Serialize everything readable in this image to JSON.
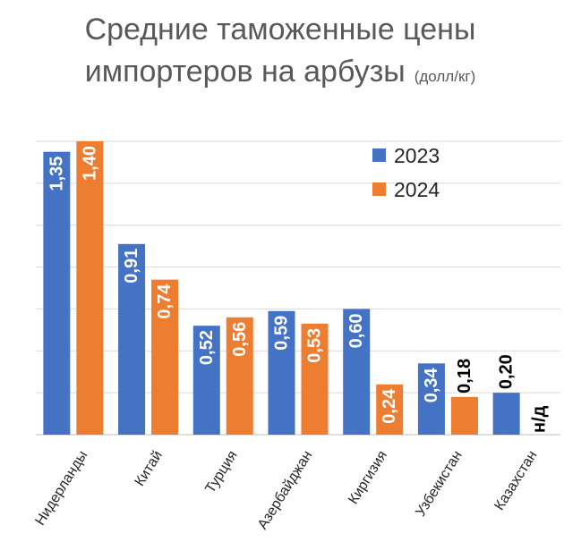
{
  "chart_data": {
    "type": "bar",
    "title_line1": "Средние таможенные цены",
    "title_line2": "импортеров на арбузы",
    "title_unit": "(долл/кг)",
    "categories": [
      "Нидерланды",
      "Китай",
      "Турция",
      "Азербайджан",
      "Киргизия",
      "Узбекистан",
      "Казахстан"
    ],
    "series": [
      {
        "name": "2023",
        "color": "#4472C4",
        "values": [
          1.35,
          0.91,
          0.52,
          0.59,
          0.6,
          0.34,
          0.2
        ],
        "labels": [
          "1,35",
          "0,91",
          "0,52",
          "0,59",
          "0,60",
          "0,34",
          "0,20"
        ]
      },
      {
        "name": "2024",
        "color": "#ED7D31",
        "values": [
          1.4,
          0.74,
          0.56,
          0.53,
          0.24,
          0.18,
          null
        ],
        "labels": [
          "1,40",
          "0,74",
          "0,56",
          "0,53",
          "0,24",
          "0,18",
          "н/д"
        ]
      }
    ],
    "ylim": [
      0,
      1.4
    ],
    "grid": true,
    "legend_position": "top-right"
  }
}
